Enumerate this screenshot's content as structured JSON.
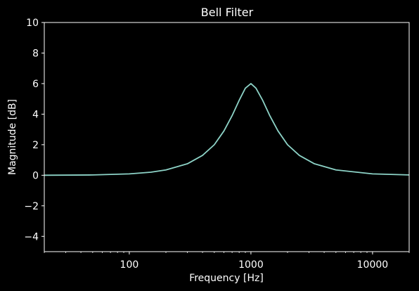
{
  "chart_data": {
    "type": "line",
    "title": "Bell Filter",
    "xlabel": "Frequency [Hz]",
    "ylabel": "Magnitude [dB]",
    "x_scale": "log",
    "xlim": [
      20,
      20000
    ],
    "ylim": [
      -5,
      10
    ],
    "x_ticks": [
      {
        "value": 100,
        "label": "100"
      },
      {
        "value": 1000,
        "label": "1000"
      },
      {
        "value": 10000,
        "label": "10000"
      }
    ],
    "y_ticks": [
      {
        "value": -4,
        "label": "−4"
      },
      {
        "value": -2,
        "label": "−2"
      },
      {
        "value": 0,
        "label": "0"
      },
      {
        "value": 2,
        "label": "2"
      },
      {
        "value": 4,
        "label": "4"
      },
      {
        "value": 6,
        "label": "6"
      },
      {
        "value": 8,
        "label": "8"
      },
      {
        "value": 10,
        "label": "10"
      }
    ],
    "grid": false,
    "series": [
      {
        "color": "#8dd3c7",
        "x": [
          20,
          50,
          100,
          150,
          200,
          300,
          400,
          500,
          600,
          700,
          800,
          900,
          1000,
          1100,
          1250,
          1430,
          1670,
          2000,
          2500,
          3330,
          5000,
          10000,
          20000
        ],
        "y": [
          0.0,
          0.02,
          0.09,
          0.2,
          0.35,
          0.75,
          1.3,
          2.0,
          2.9,
          3.9,
          4.9,
          5.7,
          6.0,
          5.7,
          4.9,
          3.9,
          2.9,
          2.0,
          1.3,
          0.75,
          0.35,
          0.09,
          0.02
        ]
      }
    ]
  }
}
